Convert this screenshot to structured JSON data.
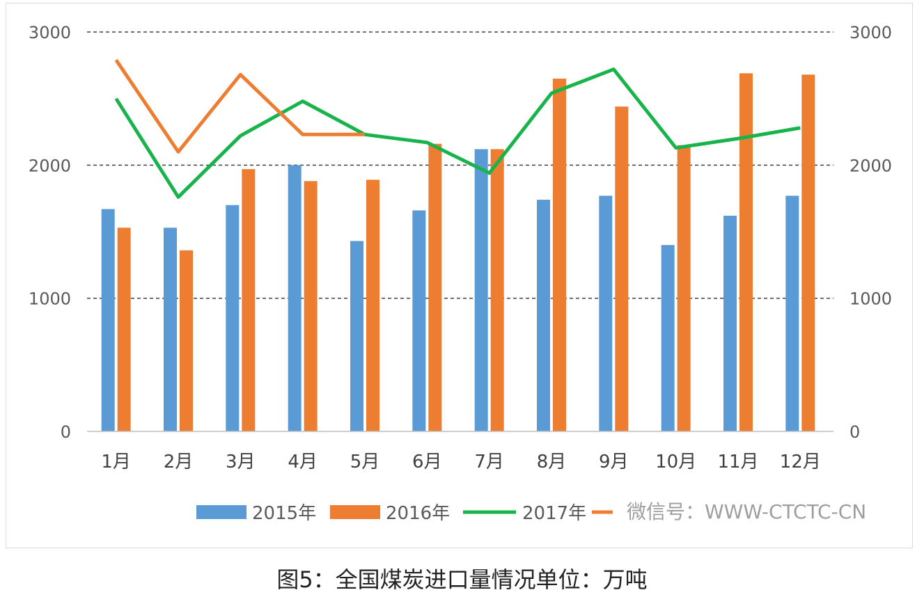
{
  "caption": "图5：全国煤炭进口量情况单位：万吨",
  "watermark": "微信号：WWW-CTCTC-CN",
  "colors": {
    "s2015": "#5b9bd5",
    "s2016": "#ed7d31",
    "s2017": "#18b34a",
    "grid": "#404040",
    "axis": "#bfbfbf"
  },
  "chart_data": {
    "type": "bar",
    "categories": [
      "1月",
      "2月",
      "3月",
      "4月",
      "5月",
      "6月",
      "7月",
      "8月",
      "9月",
      "10月",
      "11月",
      "12月"
    ],
    "ylim": [
      0,
      3000
    ],
    "yticks": [
      "0",
      "1000",
      "2000",
      "3000"
    ],
    "y2ticks": [
      "0",
      "1000",
      "2000",
      "3000"
    ],
    "grid": true,
    "legend_position": "bottom",
    "series": [
      {
        "name": "2015年",
        "type": "bar",
        "values": [
          1670,
          1530,
          1700,
          2000,
          1430,
          1660,
          2120,
          1740,
          1770,
          1400,
          1620,
          1770
        ]
      },
      {
        "name": "2016年",
        "type": "bar",
        "values": [
          1530,
          1360,
          1970,
          1880,
          1890,
          2160,
          2120,
          2650,
          2440,
          2150,
          2690,
          2680
        ]
      },
      {
        "name": "2017年",
        "type": "line",
        "values": [
          2500,
          1760,
          2220,
          2480,
          2230,
          2170,
          1940,
          2540,
          2720,
          2130,
          2200,
          2280
        ]
      },
      {
        "name": "",
        "type": "line",
        "values": [
          2790,
          2100,
          2680,
          2230,
          2230,
          null,
          null,
          null,
          null,
          null,
          null,
          null
        ]
      }
    ]
  }
}
